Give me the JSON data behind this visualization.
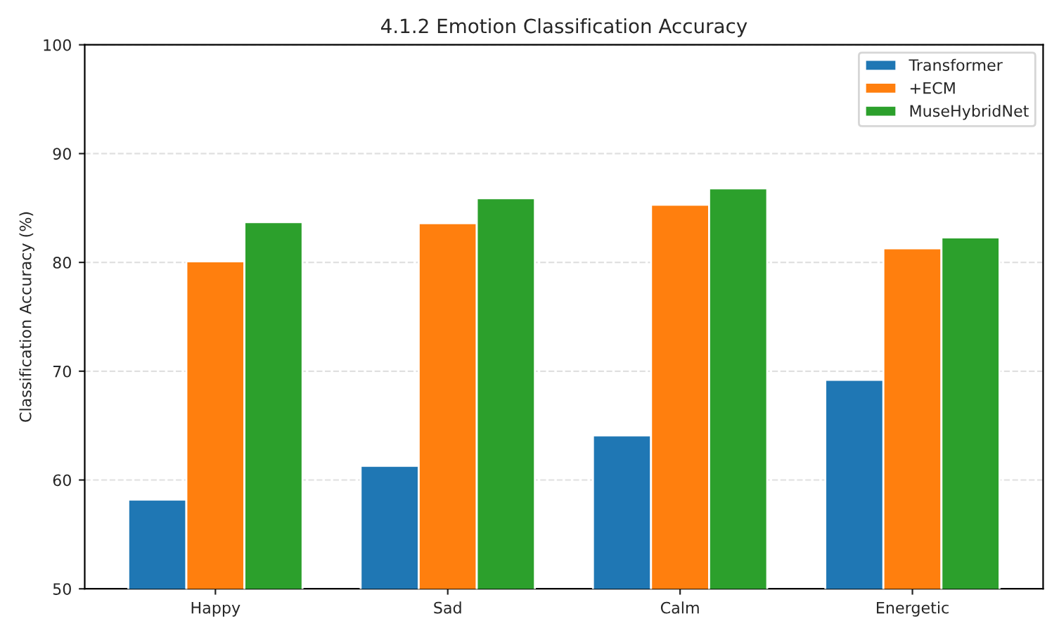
{
  "chart_data": {
    "type": "bar",
    "title": "4.1.2 Emotion Classification Accuracy",
    "ylabel": "Classification Accuracy (%)",
    "categories": [
      "Happy",
      "Sad",
      "Calm",
      "Energetic"
    ],
    "series": [
      {
        "name": "Transformer",
        "color": "#1f77b4",
        "values": [
          58.2,
          61.3,
          64.1,
          69.2
        ]
      },
      {
        "name": "+ECM",
        "color": "#ff7f0e",
        "values": [
          80.1,
          83.6,
          85.3,
          81.3
        ]
      },
      {
        "name": "MuseHybridNet",
        "color": "#2ca02c",
        "values": [
          83.7,
          85.9,
          86.8,
          82.3
        ]
      }
    ],
    "ylim": [
      50,
      100
    ],
    "yticks": [
      50,
      60,
      70,
      80,
      90,
      100
    ],
    "grid": "y",
    "legend": "top right"
  }
}
